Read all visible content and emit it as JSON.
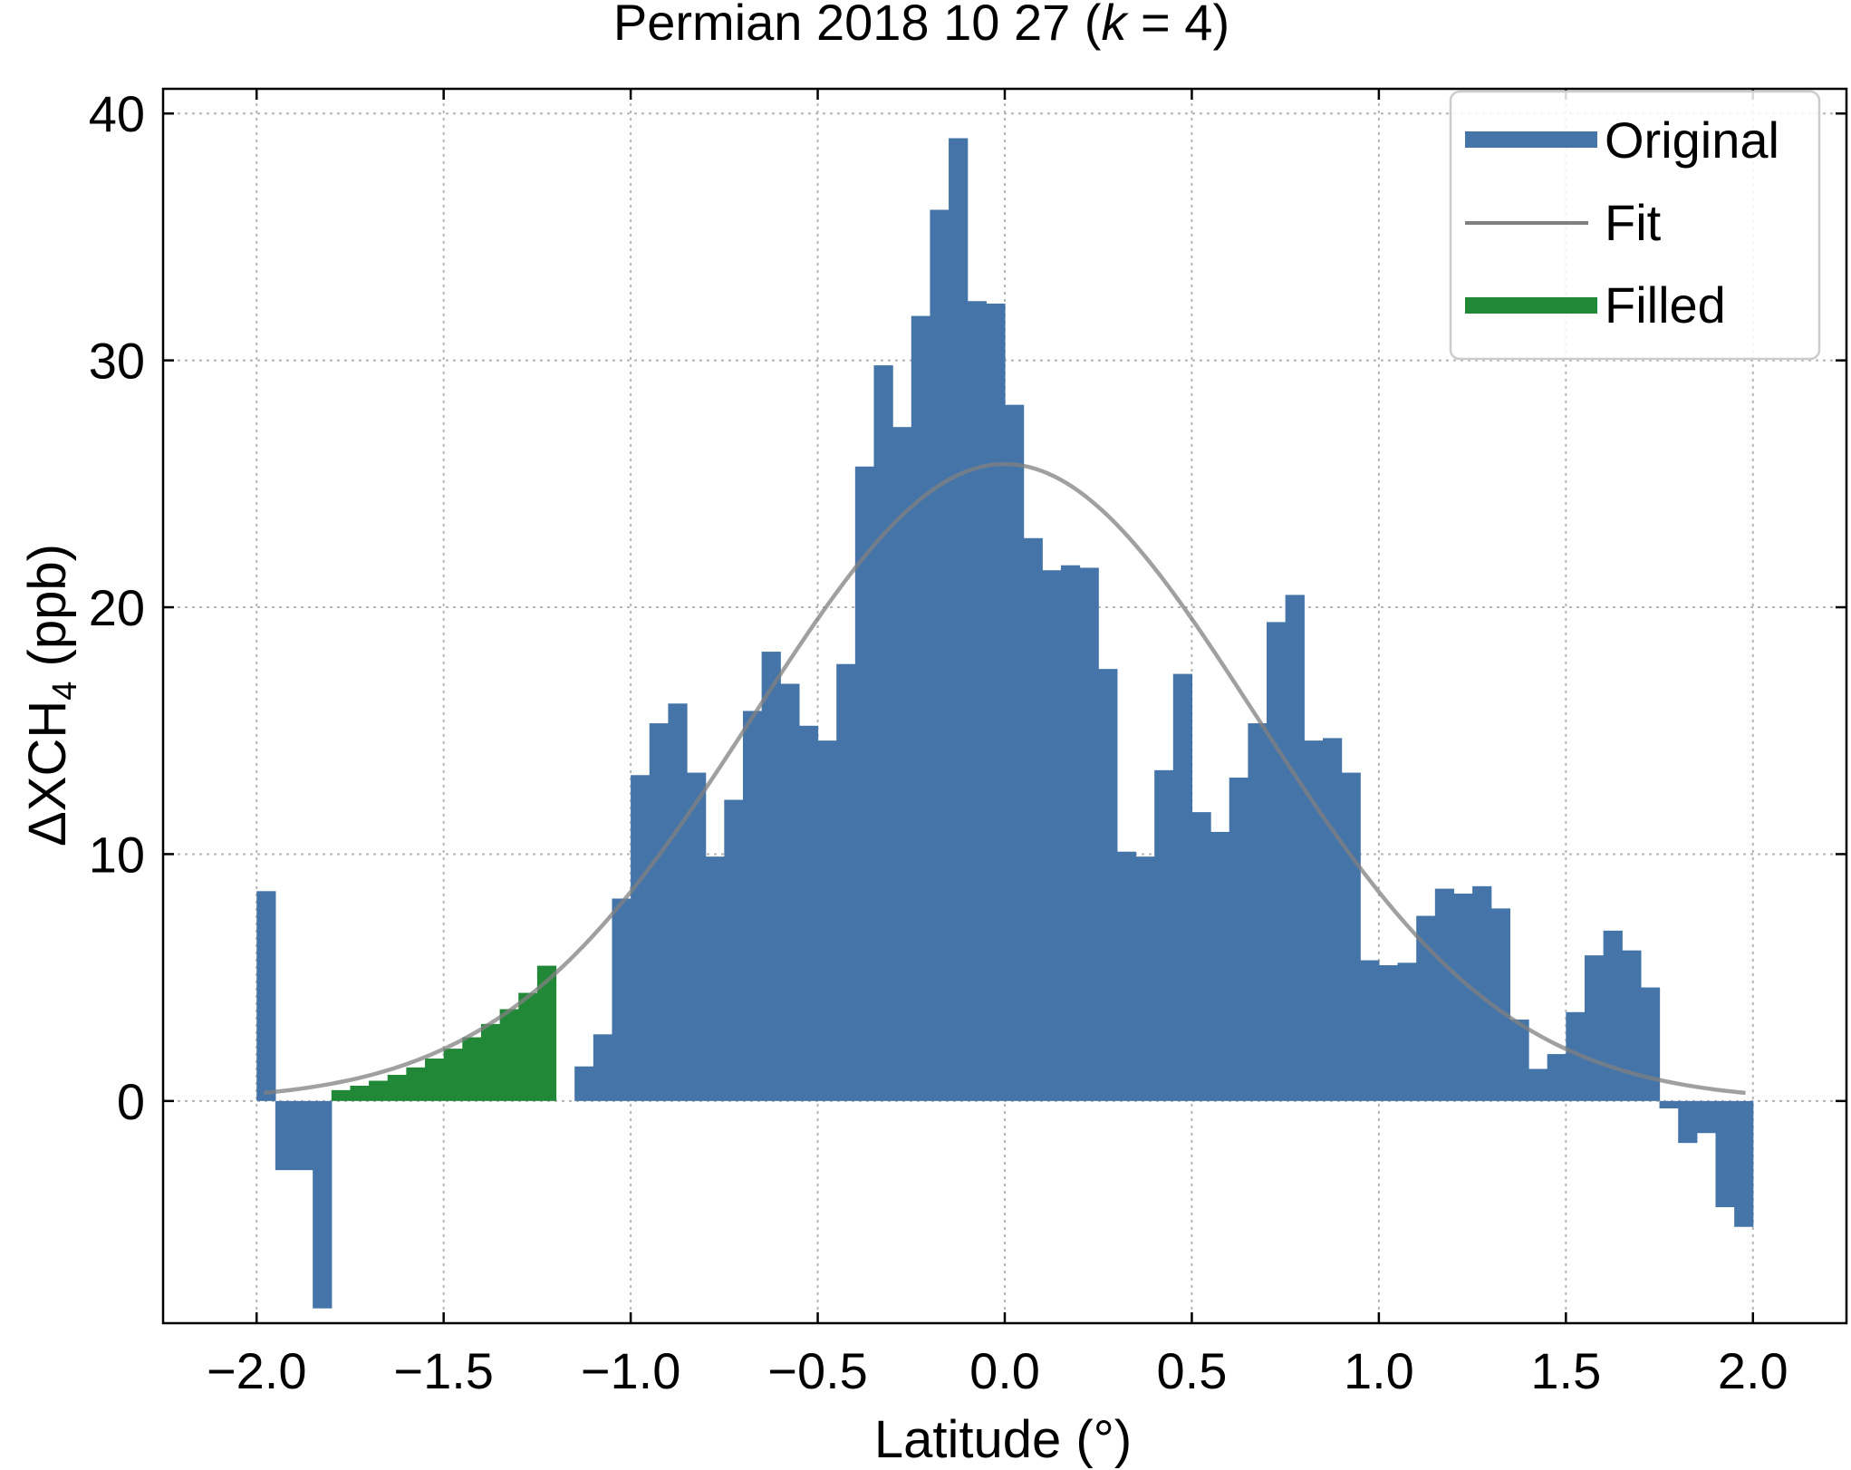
{
  "chart_data": {
    "type": "bar",
    "title": "Permian 2018 10 27 (k = 4)",
    "title_parts": {
      "prefix": "Permian 2018 10 27 (",
      "k_symbol": "k",
      "equals": " = ",
      "k_value": "4",
      "suffix": ")"
    },
    "xlabel": "Latitude (°)",
    "ylabel": "ΔXCH₄ (ppb)",
    "ylabel_parts": {
      "delta": "Δ",
      "main": "XCH",
      "subscript": "4",
      "unit": " (ppb)"
    },
    "xlim": [
      -2.25,
      2.25
    ],
    "ylim": [
      -9.0,
      41.0
    ],
    "xticks": [
      -2.0,
      -1.5,
      -1.0,
      -0.5,
      0.0,
      0.5,
      1.0,
      1.5,
      2.0
    ],
    "xtick_labels": [
      "−2.0",
      "−1.5",
      "−1.0",
      "−0.5",
      "0.0",
      "0.5",
      "1.0",
      "1.5",
      "2.0"
    ],
    "yticks": [
      0,
      10,
      20,
      30,
      40
    ],
    "ytick_labels": [
      "0",
      "10",
      "20",
      "30",
      "40"
    ],
    "grid": true,
    "legend": {
      "position": "top-right",
      "entries": [
        {
          "label": "Original",
          "kind": "bar",
          "color": "#4575a8"
        },
        {
          "label": "Fit",
          "kind": "line",
          "color": "#808080"
        },
        {
          "label": "Filled",
          "kind": "bar",
          "color": "#218838"
        }
      ]
    },
    "bin_start": -2.0,
    "bin_width": 0.05,
    "series": [
      {
        "name": "Original",
        "color": "#4575a8",
        "values": [
          8.5,
          -2.8,
          -2.8,
          -8.4,
          null,
          null,
          null,
          null,
          null,
          null,
          null,
          null,
          null,
          null,
          null,
          null,
          null,
          1.4,
          2.7,
          8.2,
          13.2,
          15.3,
          16.1,
          13.3,
          9.9,
          12.2,
          15.8,
          18.2,
          16.9,
          15.2,
          14.6,
          17.7,
          25.7,
          29.8,
          27.3,
          31.8,
          36.1,
          39.0,
          32.4,
          32.3,
          28.2,
          22.8,
          21.5,
          21.7,
          21.6,
          17.5,
          10.1,
          9.9,
          13.4,
          17.3,
          11.7,
          10.9,
          13.1,
          15.3,
          19.4,
          20.5,
          14.6,
          14.7,
          13.3,
          5.7,
          5.5,
          5.6,
          7.5,
          8.6,
          8.4,
          8.7,
          7.8,
          3.3,
          1.3,
          1.9,
          3.6,
          5.9,
          6.9,
          6.1,
          4.6,
          -0.3,
          -1.7,
          -1.3,
          -4.3,
          -5.1
        ]
      },
      {
        "name": "Filled",
        "color": "#218838",
        "values": [
          null,
          null,
          null,
          null,
          0.44,
          0.62,
          0.82,
          1.06,
          1.36,
          1.72,
          2.12,
          2.58,
          3.12,
          3.72,
          4.38,
          5.48,
          null
        ]
      },
      {
        "name": "Fit",
        "color": "#808080",
        "model": "gaussian",
        "amplitude": 25.8,
        "center": 0.0,
        "sigma": 0.67,
        "x_range": [
          -1.98,
          1.98
        ]
      }
    ]
  }
}
